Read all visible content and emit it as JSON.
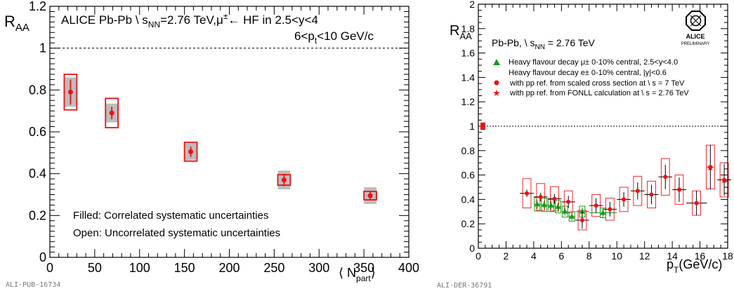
{
  "colors": {
    "red": "#ee1111",
    "green": "#1a9a1a",
    "grey": "#bdbdbd",
    "black": "#000000"
  },
  "chart_data": [
    {
      "type": "scatter",
      "title": "ALICE Pb-Pb \\ s_NN=2.76 TeV, μ± ← HF in 2.5<y<4",
      "title_line1": "ALICE Pb-Pb \\ s",
      "title_line1_sub": "NN",
      "title_line1_rest": "=2.76 TeV,μ",
      "title_line1_sup": "±",
      "title_line1_tail": "← HF in 2.5<y<4",
      "subtitle_pre": "6<p",
      "subtitle_sub": "t",
      "subtitle_post": "<10 GeV/c",
      "ylabel_main": "R",
      "ylabel_sub": "AA",
      "xlabel_main": "⟨ N",
      "xlabel_sub": "part",
      "xlabel_close": "⟩",
      "xlim": [
        0,
        400
      ],
      "ylim": [
        0,
        1.2
      ],
      "xticks": [
        0,
        50,
        100,
        150,
        200,
        250,
        300,
        350,
        400
      ],
      "yticks": [
        0,
        0.2,
        0.4,
        0.6,
        0.8,
        1,
        1.2
      ],
      "ytick_labels": [
        "0",
        "0.2",
        "0.4",
        "0.6",
        "0.8",
        "1",
        "1.2"
      ],
      "reference_line": 1,
      "series": [
        {
          "points": [
            {
              "x": 23,
              "y": 0.79,
              "stat": 0.06,
              "corr": 0.07,
              "uncorr": 0.085,
              "bw": 7
            },
            {
              "x": 69,
              "y": 0.69,
              "stat": 0.03,
              "corr": 0.045,
              "uncorr": 0.07,
              "bw": 7
            },
            {
              "x": 157,
              "y": 0.505,
              "stat": 0.025,
              "corr": 0.04,
              "uncorr": 0.045,
              "bw": 7
            },
            {
              "x": 261,
              "y": 0.37,
              "stat": 0.03,
              "corr": 0.045,
              "uncorr": 0.025,
              "bw": 7
            },
            {
              "x": 357,
              "y": 0.295,
              "stat": 0.02,
              "corr": 0.04,
              "uncorr": 0.02,
              "bw": 7
            }
          ]
        }
      ],
      "notes": [
        "Filled: Correlated systematic uncertainties",
        "Open: Uncorrelated systematic uncertainties"
      ],
      "footer": "ALI-PUB-16734"
    },
    {
      "type": "scatter",
      "ylabel_main": "R",
      "ylabel_sub": "AA",
      "xlabel_main": "p",
      "xlabel_sub": "T",
      "xlabel_rest": "(GeV/c)",
      "xlim": [
        0,
        18
      ],
      "ylim": [
        0,
        2
      ],
      "xticks": [
        0,
        2,
        4,
        6,
        8,
        10,
        12,
        14,
        16,
        18
      ],
      "yticks": [
        0,
        0.2,
        0.4,
        0.6,
        0.8,
        1,
        1.2,
        1.4,
        1.6,
        1.8,
        2
      ],
      "ytick_labels": [
        "0",
        "0.2",
        "0.4",
        "0.6",
        "0.8",
        "1",
        "1.2",
        "1.4",
        "1.6",
        "1.8",
        "2"
      ],
      "reference_line": 1,
      "system_label_pre": "Pb-Pb, \\ s",
      "system_label_sub": "NN",
      "system_label_post": " = 2.76 TeV",
      "logo_text": "ALICE",
      "logo_sub": "PRELIMINARY",
      "legend": [
        "Heavy flavour decay μ± 0-10% central, 2.5<y<4.0",
        "Heavy flavour decay e± 0-10% central, |y|<0.6",
        "with pp ref. from scaled cross section at \\ s = 7 TeV",
        "with pp ref. from FONLL calculation at \\ s = 2.76 TeV"
      ],
      "series": [
        {
          "name": "Heavy flavour decay μ± 0-10% central, 2.5<y<4.0",
          "marker": "triangle",
          "points": [
            {
              "x": 4.25,
              "y": 0.36,
              "xerr": 0.25,
              "stat": 0.04,
              "sys": 0.055
            },
            {
              "x": 4.75,
              "y": 0.355,
              "xerr": 0.25,
              "stat": 0.035,
              "sys": 0.055
            },
            {
              "x": 5.25,
              "y": 0.35,
              "xerr": 0.25,
              "stat": 0.035,
              "sys": 0.05
            },
            {
              "x": 5.75,
              "y": 0.34,
              "xerr": 0.25,
              "stat": 0.035,
              "sys": 0.05
            },
            {
              "x": 6.25,
              "y": 0.3,
              "xerr": 0.25,
              "stat": 0.035,
              "sys": 0.045
            },
            {
              "x": 6.75,
              "y": 0.26,
              "xerr": 0.25,
              "stat": 0.035,
              "sys": 0.04
            },
            {
              "x": 7.5,
              "y": 0.3,
              "xerr": 0.5,
              "stat": 0.035,
              "sys": 0.045
            },
            {
              "x": 9.0,
              "y": 0.29,
              "xerr": 1.0,
              "stat": 0.035,
              "sys": 0.04
            }
          ]
        },
        {
          "name": "with pp ref. from scaled cross section at \\ s = 7 TeV",
          "marker": "circle",
          "points": [
            {
              "x": 3.5,
              "y": 0.45,
              "xerr": 0.5,
              "stat": 0.03,
              "sys": 0.12
            },
            {
              "x": 4.5,
              "y": 0.42,
              "xerr": 0.5,
              "stat": 0.035,
              "sys": 0.11
            },
            {
              "x": 5.5,
              "y": 0.405,
              "xerr": 0.5,
              "stat": 0.04,
              "sys": 0.1
            },
            {
              "x": 6.5,
              "y": 0.38,
              "xerr": 0.5,
              "stat": 0.05,
              "sys": 0.09
            },
            {
              "x": 7.5,
              "y": 0.23,
              "xerr": 0.5,
              "stat": 0.07,
              "sys": 0.08
            },
            {
              "x": 8.5,
              "y": 0.35,
              "xerr": 0.5,
              "stat": 0.06,
              "sys": 0.09
            },
            {
              "x": 9.5,
              "y": 0.32,
              "xerr": 0.5,
              "stat": 0.06,
              "sys": 0.09
            },
            {
              "x": 10.5,
              "y": 0.4,
              "xerr": 0.5,
              "stat": 0.06,
              "sys": 0.1
            },
            {
              "x": 11.5,
              "y": 0.47,
              "xerr": 0.5,
              "stat": 0.07,
              "sys": 0.12
            },
            {
              "x": 12.5,
              "y": 0.44,
              "xerr": 0.5,
              "stat": 0.08,
              "sys": 0.11
            },
            {
              "x": 13.5,
              "y": 0.585,
              "xerr": 0.5,
              "stat": 0.1,
              "sys": 0.15
            },
            {
              "x": 14.5,
              "y": 0.48,
              "xerr": 0.5,
              "stat": 0.1,
              "sys": 0.12
            },
            {
              "x": 15.75,
              "y": 0.37,
              "xerr": 0.75,
              "stat": 0.1,
              "sys": 0.1
            },
            {
              "x": 16.75,
              "y": 0.665,
              "xerr": 0.25,
              "stat": 0.18,
              "sys": 0.18
            },
            {
              "x": 17.75,
              "y": 0.56,
              "xerr": 0.5,
              "stat": 0.13,
              "sys": 0.14
            }
          ]
        },
        {
          "name": "with pp ref. from FONLL calculation at \\ s = 2.76 TeV",
          "marker": "star",
          "points": [
            {
              "x": 16.75,
              "y": 0.665,
              "xerr": 0.25,
              "stat": 0.18,
              "sys": 0.18
            },
            {
              "x": 17.75,
              "y": 0.56,
              "xerr": 0.5,
              "stat": 0.13,
              "sys": 0.14
            }
          ]
        }
      ],
      "normalization_box": {
        "y": 1.0,
        "half": 0.03
      },
      "footer": "ALI-DER-36791"
    }
  ]
}
